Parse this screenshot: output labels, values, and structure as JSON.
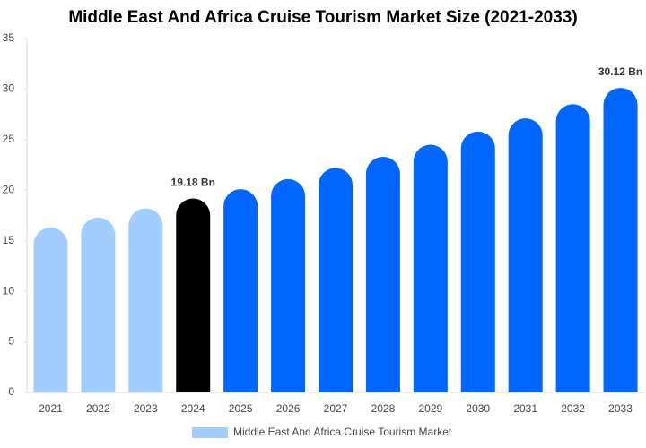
{
  "chart_data": {
    "type": "bar",
    "title": "Middle East And Africa Cruise Tourism Market Size (2021-2033)",
    "categories": [
      "2021",
      "2022",
      "2023",
      "2024",
      "2025",
      "2026",
      "2027",
      "2028",
      "2029",
      "2030",
      "2031",
      "2032",
      "2033"
    ],
    "series": [
      {
        "name": "Middle East And Africa Cruise Tourism Market",
        "color": "#a3cdfc",
        "colors": [
          "#a3cdfc",
          "#a3cdfc",
          "#a3cdfc",
          "#000000",
          "#0066ff",
          "#0066ff",
          "#0066ff",
          "#0066ff",
          "#0066ff",
          "#0066ff",
          "#0066ff",
          "#0066ff",
          "#0066ff"
        ],
        "values": [
          16.3,
          17.3,
          18.2,
          19.18,
          20.1,
          21.1,
          22.2,
          23.3,
          24.5,
          25.8,
          27.1,
          28.5,
          30.12
        ],
        "value_labels": [
          null,
          null,
          null,
          "19.18 Bn",
          null,
          null,
          null,
          null,
          null,
          null,
          null,
          null,
          "30.12 Bn"
        ]
      }
    ],
    "ylim": [
      0,
      35
    ],
    "yticks": [
      0,
      5,
      10,
      15,
      20,
      25,
      30,
      35
    ],
    "grid": false
  }
}
